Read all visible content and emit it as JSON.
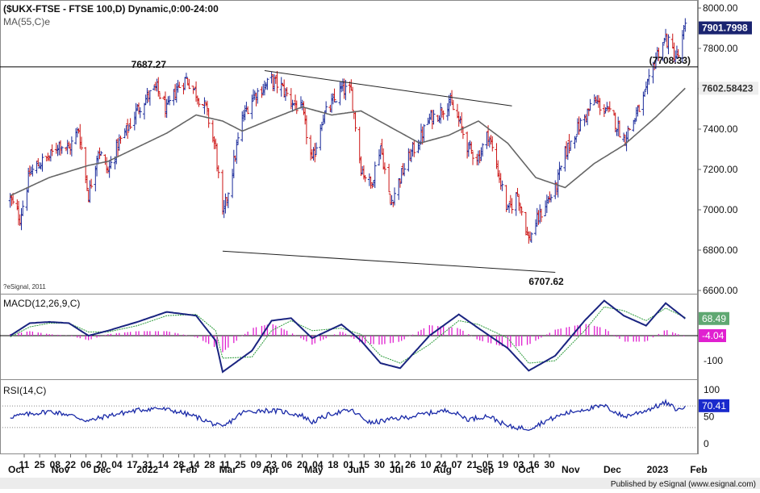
{
  "chart_data": [
    {
      "type": "candlestick",
      "title": "($UKX-FTSE - FTSE 100,D) Dynamic,0:00-24:00",
      "subtitle": "MA(55,C)e",
      "ylim": [
        6600,
        8100
      ],
      "yticks": [
        "8000.00",
        "7800.00",
        "7600.00",
        "7400.00",
        "7200.00",
        "7000.00",
        "6800.00",
        "6600.00"
      ],
      "grid": false,
      "last_price": "7901.7998",
      "ma_value": "7602.58423",
      "ma_label": "MA(55,C)e",
      "annotations": [
        {
          "text": "7687.27",
          "x": "2022-02-10",
          "y": 7687.27
        },
        {
          "text": "6707.62",
          "x": "2022-10-12",
          "y": 6707.62
        },
        {
          "text": "(7708.33)",
          "x": "2023-01-28",
          "y": 7708.33
        }
      ],
      "horizontal_line": {
        "y": 7708.33
      },
      "trendlines": [
        {
          "name": "upper",
          "points": [
            [
              "2022-04-06",
              7690
            ],
            [
              "2022-09-30",
              7515
            ]
          ]
        },
        {
          "name": "lower",
          "points": [
            [
              "2022-03-07",
              6795
            ],
            [
              "2022-10-31",
              6690
            ]
          ]
        }
      ],
      "close_series": [
        [
          "2021-10-06",
          7050
        ],
        [
          "2021-10-13",
          6960
        ],
        [
          "2021-10-20",
          7180
        ],
        [
          "2021-10-27",
          7230
        ],
        [
          "2021-11-03",
          7260
        ],
        [
          "2021-11-10",
          7330
        ],
        [
          "2021-11-17",
          7300
        ],
        [
          "2021-11-24",
          7400
        ],
        [
          "2021-12-01",
          7070
        ],
        [
          "2021-12-08",
          7300
        ],
        [
          "2021-12-15",
          7190
        ],
        [
          "2021-12-22",
          7320
        ],
        [
          "2021-12-29",
          7400
        ],
        [
          "2022-01-05",
          7500
        ],
        [
          "2022-01-12",
          7560
        ],
        [
          "2022-01-19",
          7600
        ],
        [
          "2022-01-26",
          7490
        ],
        [
          "2022-02-02",
          7600
        ],
        [
          "2022-02-09",
          7650
        ],
        [
          "2022-02-16",
          7580
        ],
        [
          "2022-02-23",
          7500
        ],
        [
          "2022-03-02",
          7300
        ],
        [
          "2022-03-07",
          6959
        ],
        [
          "2022-03-14",
          7200
        ],
        [
          "2022-03-21",
          7450
        ],
        [
          "2022-03-28",
          7560
        ],
        [
          "2022-04-04",
          7600
        ],
        [
          "2022-04-11",
          7640
        ],
        [
          "2022-04-18",
          7610
        ],
        [
          "2022-04-25",
          7540
        ],
        [
          "2022-05-03",
          7490
        ],
        [
          "2022-05-10",
          7230
        ],
        [
          "2022-05-17",
          7450
        ],
        [
          "2022-05-24",
          7520
        ],
        [
          "2022-05-31",
          7600
        ],
        [
          "2022-06-07",
          7580
        ],
        [
          "2022-06-14",
          7210
        ],
        [
          "2022-06-21",
          7120
        ],
        [
          "2022-06-28",
          7320
        ],
        [
          "2022-07-05",
          7030
        ],
        [
          "2022-07-12",
          7160
        ],
        [
          "2022-07-19",
          7270
        ],
        [
          "2022-07-26",
          7350
        ],
        [
          "2022-08-02",
          7450
        ],
        [
          "2022-08-09",
          7480
        ],
        [
          "2022-08-16",
          7540
        ],
        [
          "2022-08-23",
          7440
        ],
        [
          "2022-08-30",
          7300
        ],
        [
          "2022-09-06",
          7260
        ],
        [
          "2022-09-13",
          7380
        ],
        [
          "2022-09-20",
          7190
        ],
        [
          "2022-09-27",
          6990
        ],
        [
          "2022-10-04",
          7080
        ],
        [
          "2022-10-12",
          6850
        ],
        [
          "2022-10-17",
          6930
        ],
        [
          "2022-10-24",
          7030
        ],
        [
          "2022-10-31",
          7100
        ],
        [
          "2022-11-07",
          7280
        ],
        [
          "2022-11-14",
          7380
        ],
        [
          "2022-11-21",
          7460
        ],
        [
          "2022-11-28",
          7540
        ],
        [
          "2022-12-05",
          7500
        ],
        [
          "2022-12-12",
          7450
        ],
        [
          "2022-12-19",
          7350
        ],
        [
          "2022-12-28",
          7470
        ],
        [
          "2023-01-04",
          7580
        ],
        [
          "2023-01-11",
          7760
        ],
        [
          "2023-01-18",
          7850
        ],
        [
          "2023-01-25",
          7760
        ],
        [
          "2023-01-27",
          7765
        ],
        [
          "2023-02-01",
          7901.8
        ]
      ],
      "ma_series": [
        [
          "2021-10-06",
          7070
        ],
        [
          "2021-11-03",
          7160
        ],
        [
          "2021-12-01",
          7220
        ],
        [
          "2021-12-15",
          7240
        ],
        [
          "2022-01-05",
          7310
        ],
        [
          "2022-01-26",
          7380
        ],
        [
          "2022-02-16",
          7470
        ],
        [
          "2022-03-07",
          7440
        ],
        [
          "2022-03-21",
          7390
        ],
        [
          "2022-04-11",
          7450
        ],
        [
          "2022-05-03",
          7510
        ],
        [
          "2022-05-24",
          7470
        ],
        [
          "2022-06-14",
          7490
        ],
        [
          "2022-07-05",
          7410
        ],
        [
          "2022-07-26",
          7330
        ],
        [
          "2022-08-16",
          7370
        ],
        [
          "2022-09-06",
          7440
        ],
        [
          "2022-09-27",
          7330
        ],
        [
          "2022-10-17",
          7160
        ],
        [
          "2022-11-07",
          7110
        ],
        [
          "2022-11-28",
          7230
        ],
        [
          "2022-12-19",
          7320
        ],
        [
          "2023-01-11",
          7460
        ],
        [
          "2023-02-01",
          7602.6
        ]
      ],
      "colors": {
        "up": "#1a2a9a",
        "down": "#cc1414",
        "ma": "#666666",
        "hline": "#000000"
      }
    },
    {
      "type": "line",
      "title": "MACD(12,26,9,C)",
      "ylim": [
        -140,
        200
      ],
      "yticks": [
        "-100"
      ],
      "macd_value": "68.49",
      "histogram_value": "-4.04",
      "series": [
        {
          "name": "MACD",
          "color": "#1a2480",
          "values": [
            [
              "2021-10-06",
              0
            ],
            [
              "2021-10-20",
              50
            ],
            [
              "2021-11-03",
              55
            ],
            [
              "2021-11-17",
              50
            ],
            [
              "2021-12-01",
              0
            ],
            [
              "2021-12-15",
              20
            ],
            [
              "2022-01-05",
              55
            ],
            [
              "2022-01-26",
              95
            ],
            [
              "2022-02-16",
              80
            ],
            [
              "2022-03-02",
              -20
            ],
            [
              "2022-03-07",
              -145
            ],
            [
              "2022-03-28",
              -60
            ],
            [
              "2022-04-11",
              60
            ],
            [
              "2022-04-25",
              70
            ],
            [
              "2022-05-10",
              -10
            ],
            [
              "2022-05-31",
              45
            ],
            [
              "2022-06-14",
              -20
            ],
            [
              "2022-06-28",
              -110
            ],
            [
              "2022-07-12",
              -130
            ],
            [
              "2022-08-02",
              0
            ],
            [
              "2022-08-23",
              85
            ],
            [
              "2022-09-06",
              30
            ],
            [
              "2022-09-27",
              -50
            ],
            [
              "2022-10-12",
              -140
            ],
            [
              "2022-10-31",
              -80
            ],
            [
              "2022-11-21",
              60
            ],
            [
              "2022-12-05",
              140
            ],
            [
              "2022-12-19",
              80
            ],
            [
              "2023-01-04",
              40
            ],
            [
              "2023-01-18",
              130
            ],
            [
              "2023-02-01",
              68.49
            ]
          ]
        },
        {
          "name": "Signal",
          "color": "#2e9c3c",
          "values": [
            [
              "2021-10-06",
              -5
            ],
            [
              "2021-10-20",
              35
            ],
            [
              "2021-11-03",
              50
            ],
            [
              "2021-11-17",
              50
            ],
            [
              "2021-12-01",
              15
            ],
            [
              "2021-12-15",
              15
            ],
            [
              "2022-01-05",
              40
            ],
            [
              "2022-01-26",
              80
            ],
            [
              "2022-02-16",
              85
            ],
            [
              "2022-03-02",
              20
            ],
            [
              "2022-03-07",
              -90
            ],
            [
              "2022-03-28",
              -85
            ],
            [
              "2022-04-11",
              20
            ],
            [
              "2022-04-25",
              60
            ],
            [
              "2022-05-10",
              20
            ],
            [
              "2022-05-31",
              30
            ],
            [
              "2022-06-14",
              5
            ],
            [
              "2022-06-28",
              -80
            ],
            [
              "2022-07-12",
              -110
            ],
            [
              "2022-08-02",
              -35
            ],
            [
              "2022-08-23",
              60
            ],
            [
              "2022-09-06",
              45
            ],
            [
              "2022-09-27",
              -10
            ],
            [
              "2022-10-12",
              -110
            ],
            [
              "2022-10-31",
              -100
            ],
            [
              "2022-11-21",
              20
            ],
            [
              "2022-12-05",
              115
            ],
            [
              "2022-12-19",
              100
            ],
            [
              "2023-01-04",
              60
            ],
            [
              "2023-01-18",
              110
            ],
            [
              "2023-02-01",
              72.5
            ]
          ]
        }
      ],
      "histogram_color": "#e020d0"
    },
    {
      "type": "line",
      "title": "RSI(14,C)",
      "ylim": [
        0,
        100
      ],
      "yticks": [
        "100",
        "50",
        "0"
      ],
      "rsi_value": "70.41",
      "reference_lines": [
        30,
        70
      ],
      "series": [
        {
          "name": "RSI",
          "color": "#1a2aa8",
          "values": [
            [
              "2021-10-06",
              50
            ],
            [
              "2021-10-20",
              55
            ],
            [
              "2021-11-03",
              60
            ],
            [
              "2021-11-17",
              54
            ],
            [
              "2021-12-01",
              42
            ],
            [
              "2021-12-15",
              52
            ],
            [
              "2022-01-05",
              62
            ],
            [
              "2022-01-19",
              66
            ],
            [
              "2022-02-02",
              60
            ],
            [
              "2022-02-16",
              50
            ],
            [
              "2022-03-07",
              30
            ],
            [
              "2022-03-21",
              58
            ],
            [
              "2022-04-04",
              62
            ],
            [
              "2022-04-18",
              60
            ],
            [
              "2022-05-03",
              52
            ],
            [
              "2022-05-10",
              40
            ],
            [
              "2022-05-24",
              56
            ],
            [
              "2022-06-07",
              62
            ],
            [
              "2022-06-21",
              38
            ],
            [
              "2022-07-05",
              45
            ],
            [
              "2022-07-19",
              50
            ],
            [
              "2022-08-02",
              57
            ],
            [
              "2022-08-16",
              62
            ],
            [
              "2022-08-30",
              45
            ],
            [
              "2022-09-13",
              52
            ],
            [
              "2022-09-27",
              32
            ],
            [
              "2022-10-12",
              28
            ],
            [
              "2022-10-24",
              42
            ],
            [
              "2022-11-07",
              56
            ],
            [
              "2022-11-21",
              64
            ],
            [
              "2022-12-05",
              70
            ],
            [
              "2022-12-19",
              50
            ],
            [
              "2023-01-04",
              62
            ],
            [
              "2023-01-18",
              76
            ],
            [
              "2023-01-27",
              62
            ],
            [
              "2023-02-01",
              70.41
            ]
          ]
        }
      ]
    }
  ],
  "x_axis": {
    "day_labels": [
      "11",
      "25",
      "08",
      "22",
      "06",
      "20",
      "04",
      "17",
      "31",
      "14",
      "28",
      "14",
      "28",
      "11",
      "25",
      "09",
      "23",
      "06",
      "20",
      "04",
      "18",
      "01",
      "15",
      "30",
      "12",
      "26",
      "10",
      "24",
      "07",
      "21",
      "05",
      "19",
      "03",
      "16",
      "30"
    ],
    "month_labels": [
      {
        "date": "2021-10-01",
        "text": "Oct"
      },
      {
        "date": "2021-11-01",
        "text": "Nov"
      },
      {
        "date": "2021-12-01",
        "text": "Dec"
      },
      {
        "date": "2022-01-01",
        "text": "2022"
      },
      {
        "date": "2022-02-01",
        "text": "Feb"
      },
      {
        "date": "2022-03-01",
        "text": "Mar"
      },
      {
        "date": "2022-04-01",
        "text": "Apr"
      },
      {
        "date": "2022-05-01",
        "text": "May"
      },
      {
        "date": "2022-06-01",
        "text": "Jun"
      },
      {
        "date": "2022-07-01",
        "text": "Jul"
      },
      {
        "date": "2022-08-01",
        "text": "Aug"
      },
      {
        "date": "2022-09-01",
        "text": "Sep"
      },
      {
        "date": "2022-10-01",
        "text": "Oct"
      },
      {
        "date": "2022-11-01",
        "text": "Nov"
      },
      {
        "date": "2022-12-01",
        "text": "Dec"
      },
      {
        "date": "2023-01-01",
        "text": "2023"
      },
      {
        "date": "2023-02-01",
        "text": "Feb"
      }
    ]
  },
  "copyright": "?eSignal, 2011",
  "footer": "Published by eSignal (www.esignal.com)"
}
